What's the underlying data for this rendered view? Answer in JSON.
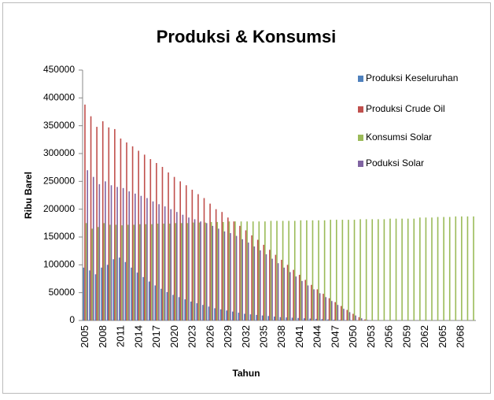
{
  "chart_data": {
    "type": "bar",
    "title": "Produksi & Konsumsi",
    "x_label": "Tahun",
    "y_label": "Ribu Barel",
    "categories": [
      "2005",
      null,
      null,
      "2008",
      null,
      null,
      "2011",
      null,
      null,
      "2014",
      null,
      null,
      "2017",
      null,
      null,
      "2020",
      null,
      null,
      "2023",
      null,
      null,
      "2026",
      null,
      null,
      "2029",
      null,
      null,
      "2032",
      null,
      null,
      "2035",
      null,
      null,
      "2038",
      null,
      null,
      "2041",
      null,
      null,
      "2044",
      null,
      null,
      "2047",
      null,
      null,
      "2050",
      null,
      null,
      "2053",
      null,
      null,
      "2056",
      null,
      null,
      "2059",
      null,
      null,
      "2062",
      null,
      null,
      "2065",
      null,
      null,
      "2068",
      null,
      null
    ],
    "series": [
      {
        "name": "Produksi Keseluruhan",
        "color": "#4f81bd",
        "values": [
          95000,
          90000,
          83000,
          95000,
          100000,
          110000,
          113000,
          105000,
          95000,
          86000,
          78000,
          70000,
          63000,
          57000,
          51000,
          46000,
          42000,
          38000,
          34000,
          31000,
          28000,
          25000,
          22000,
          20000,
          18000,
          16000,
          14000,
          12000,
          11000,
          10000,
          9000,
          8000,
          7000,
          6000,
          5500,
          5000,
          4500,
          4000,
          3500,
          3000,
          2500,
          2000,
          1500,
          1000,
          800,
          500,
          200,
          0,
          0,
          0,
          0,
          0,
          0,
          0,
          0,
          0,
          0,
          0,
          0,
          0,
          0,
          0,
          0,
          0,
          0,
          0
        ]
      },
      {
        "name": "Produksi Crude Oil",
        "color": "#c0504d",
        "values": [
          388000,
          367000,
          348000,
          358000,
          347000,
          344000,
          327000,
          320000,
          313000,
          305000,
          298000,
          290000,
          283000,
          276000,
          266000,
          258000,
          250000,
          243000,
          235000,
          227000,
          220000,
          210000,
          200000,
          195000,
          185000,
          178000,
          170000,
          162000,
          153000,
          145000,
          136000,
          127000,
          118000,
          109000,
          100000,
          91000,
          82000,
          73000,
          64000,
          56000,
          48000,
          40000,
          33000,
          26000,
          19000,
          12000,
          6000,
          2000,
          0,
          0,
          0,
          0,
          0,
          0,
          0,
          0,
          0,
          0,
          0,
          0,
          0,
          0,
          0,
          0,
          0,
          0
        ]
      },
      {
        "name": "Konsumsi Solar",
        "color": "#9bbb59",
        "values": [
          175000,
          165000,
          168000,
          175000,
          172000,
          172000,
          171000,
          172000,
          172000,
          173000,
          173000,
          173000,
          174000,
          174000,
          174000,
          175000,
          175000,
          175000,
          176000,
          176000,
          176000,
          177000,
          177000,
          177000,
          178000,
          178000,
          178000,
          178000,
          178000,
          178000,
          178000,
          179000,
          179000,
          179000,
          179000,
          179000,
          180000,
          180000,
          180000,
          180000,
          180000,
          181000,
          181000,
          181000,
          181000,
          181000,
          182000,
          182000,
          182000,
          182000,
          182000,
          183000,
          183000,
          183000,
          183000,
          183000,
          185000,
          185000,
          185000,
          186000,
          186000,
          186000,
          187000,
          187000,
          187000,
          187000
        ]
      },
      {
        "name": "Poduksi Solar",
        "color": "#8064a2",
        "values": [
          270000,
          258000,
          245000,
          250000,
          243000,
          240000,
          238000,
          232000,
          228000,
          224000,
          220000,
          214000,
          209000,
          205000,
          200000,
          195000,
          190000,
          185000,
          182000,
          178000,
          175000,
          170000,
          165000,
          160000,
          157000,
          152000,
          146000,
          140000,
          133000,
          126000,
          119000,
          111000,
          103000,
          95000,
          87000,
          79000,
          71000,
          63000,
          56000,
          49000,
          42000,
          35000,
          28000,
          21000,
          15000,
          9000,
          4000,
          1000,
          0,
          0,
          0,
          0,
          0,
          0,
          0,
          0,
          0,
          0,
          0,
          0,
          0,
          0,
          0,
          0,
          0,
          0
        ]
      }
    ],
    "ylim": [
      0,
      450000
    ],
    "yticks": [
      0,
      50000,
      100000,
      150000,
      200000,
      250000,
      300000,
      350000,
      400000,
      450000
    ]
  }
}
